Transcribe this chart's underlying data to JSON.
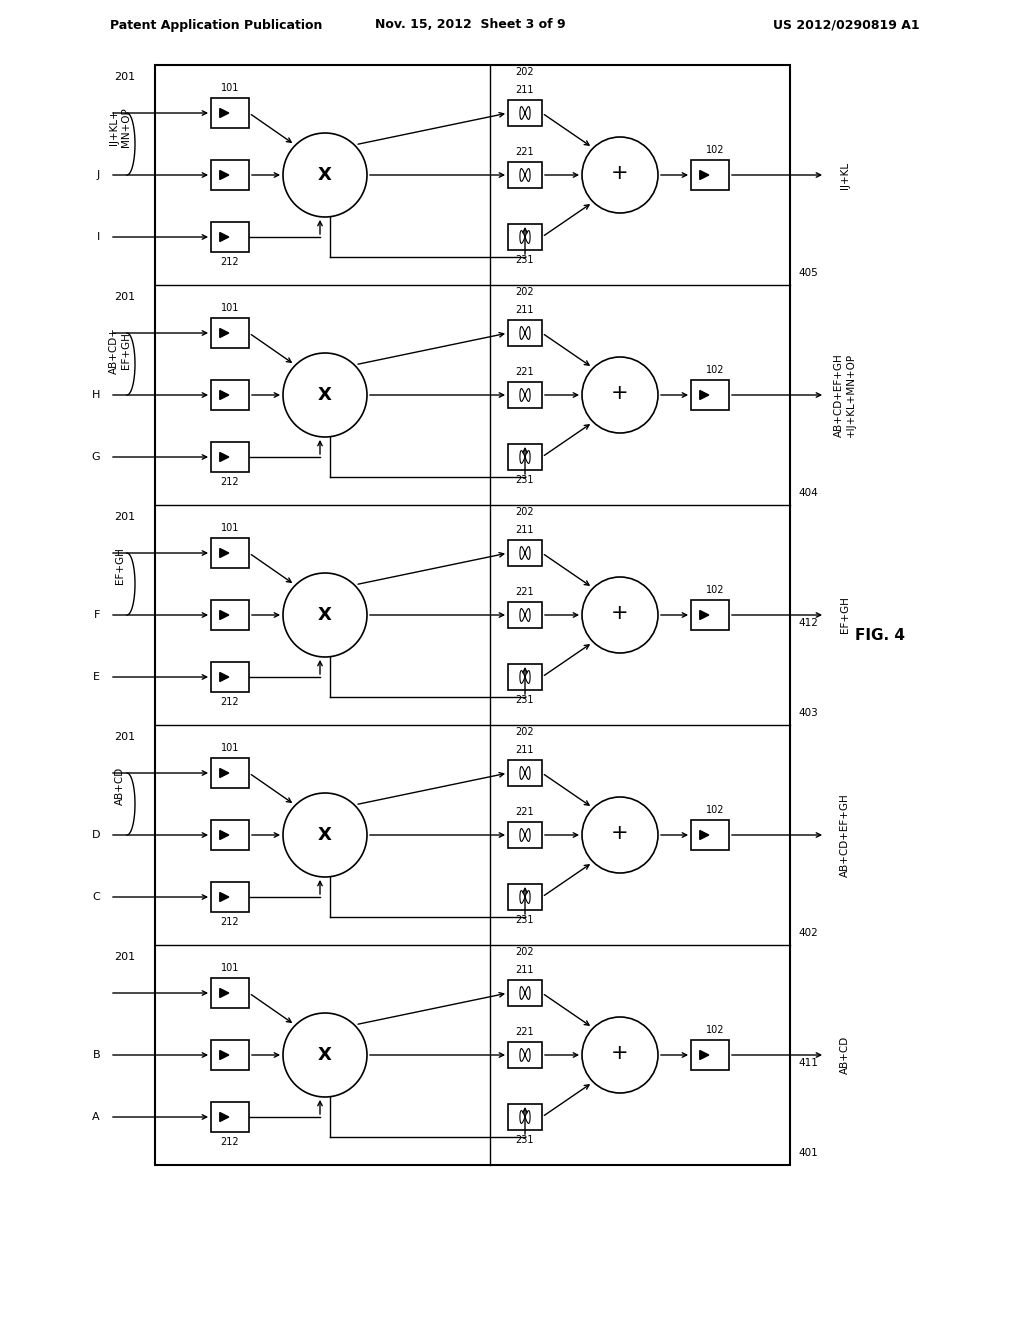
{
  "header_left": "Patent Application Publication",
  "header_mid": "Nov. 15, 2012  Sheet 3 of 9",
  "header_right": "US 2012/0290819 A1",
  "fig_label": "FIG. 4",
  "bg_color": "#ffffff",
  "blocks": [
    {
      "id": 0,
      "input_top_label": "IJ+KL+\nMN+OP",
      "input_mid_label": "J",
      "input_bot_label": "I",
      "output_label": "IJ+KL",
      "bracket_label": "405",
      "block_label": "201"
    },
    {
      "id": 1,
      "input_top_label": "AB+CD+\nEF+GH",
      "input_mid_label": "H",
      "input_bot_label": "G",
      "output_label": "AB+CD+EF+GH\n+IJ+KL+MN+OP",
      "bracket_label": "404",
      "block_label": "201"
    },
    {
      "id": 2,
      "input_top_label": "EF+GH",
      "input_mid_label": "F",
      "input_bot_label": "E",
      "output_label": "EF+GH",
      "bracket_label": "403",
      "side_label": "412",
      "block_label": "201"
    },
    {
      "id": 3,
      "input_top_label": "AB+CD",
      "input_mid_label": "D",
      "input_bot_label": "C",
      "output_label": "AB+CD+EF+GH",
      "bracket_label": "402",
      "block_label": "201"
    },
    {
      "id": 4,
      "input_top_label": "",
      "input_mid_label": "B",
      "input_bot_label": "A",
      "output_label": "AB+CD",
      "bracket_label": "401",
      "side_label": "411",
      "block_label": "201"
    }
  ]
}
